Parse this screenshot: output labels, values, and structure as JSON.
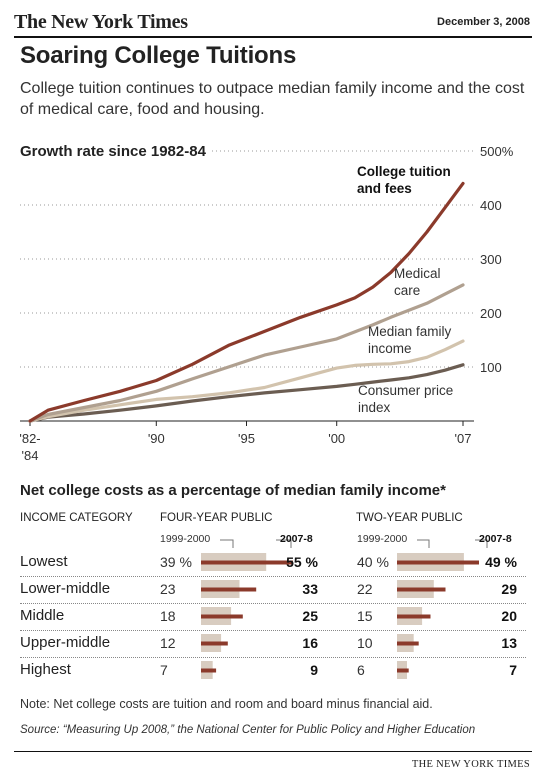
{
  "header": {
    "masthead": "The New York Times",
    "date": "December 3, 2008",
    "title": "Soaring College Tuitions",
    "subtitle": "College tuition continues to outpace median family income and the cost of medical care, food and housing."
  },
  "chart_data": [
    {
      "type": "line",
      "title": "Growth rate since 1982-84",
      "y_axis": {
        "ylim": [
          0,
          500
        ],
        "ticks": [
          "100",
          "200",
          "300",
          "400",
          "500%"
        ],
        "tick_values": [
          100,
          200,
          300,
          400,
          500
        ],
        "grid": true,
        "position": "right"
      },
      "x_axis": {
        "ticks": [
          {
            "label": "'82-",
            "label2": "'84",
            "year": 1983
          },
          {
            "label": "'90",
            "year": 1990
          },
          {
            "label": "'95",
            "year": 1995
          },
          {
            "label": "'00",
            "year": 2000
          },
          {
            "label": "'07",
            "year": 2007
          }
        ]
      },
      "x": [
        1983,
        1984,
        1986,
        1988,
        1990,
        1992,
        1994,
        1996,
        1998,
        2000,
        2001,
        2002,
        2003,
        2004,
        2005,
        2006,
        2007
      ],
      "series": [
        {
          "name": "College tuition and fees",
          "label_lines": [
            "College tuition",
            "and fees"
          ],
          "color": "#8b3a2b",
          "bold": true,
          "values": [
            0,
            20,
            38,
            55,
            75,
            105,
            140,
            166,
            192,
            215,
            228,
            248,
            275,
            310,
            350,
            395,
            440
          ]
        },
        {
          "name": "Medical care",
          "label_lines": [
            "Medical",
            "care"
          ],
          "color": "#b0a090",
          "bold": false,
          "values": [
            0,
            12,
            25,
            38,
            55,
            78,
            100,
            122,
            137,
            152,
            165,
            178,
            192,
            205,
            218,
            235,
            252
          ]
        },
        {
          "name": "Median family income",
          "label_lines": [
            "Median family",
            "income"
          ],
          "color": "#d2c3ad",
          "bold": false,
          "values": [
            0,
            8,
            20,
            30,
            40,
            45,
            52,
            62,
            80,
            98,
            103,
            105,
            106,
            110,
            118,
            132,
            148
          ]
        },
        {
          "name": "Consumer price index",
          "label_lines": [
            "Consumer price",
            "index"
          ],
          "color": "#6b5d52",
          "bold": false,
          "values": [
            0,
            7,
            13,
            20,
            28,
            37,
            45,
            52,
            58,
            64,
            68,
            72,
            76,
            80,
            86,
            94,
            104
          ]
        }
      ]
    },
    {
      "type": "table",
      "title": "Net college costs as a percentage of median family income*",
      "columns": {
        "category": "INCOME CATEGORY",
        "four_year": "FOUR-YEAR PUBLIC",
        "two_year": "TWO-YEAR PUBLIC",
        "year_a": "1999-2000",
        "year_b": "2007-8"
      },
      "scale_max": 55,
      "rows": [
        {
          "label": "Lowest",
          "four_a": "39 %",
          "four_b": "55 %",
          "four_a_val": 39,
          "four_b_val": 55,
          "two_a": "40 %",
          "two_b": "49 %",
          "two_a_val": 40,
          "two_b_val": 49
        },
        {
          "label": "Lower-middle",
          "four_a": "23",
          "four_b": "33",
          "four_a_val": 23,
          "four_b_val": 33,
          "two_a": "22",
          "two_b": "29",
          "two_a_val": 22,
          "two_b_val": 29
        },
        {
          "label": "Middle",
          "four_a": "18",
          "four_b": "25",
          "four_a_val": 18,
          "four_b_val": 25,
          "two_a": "15",
          "two_b": "20",
          "two_a_val": 15,
          "two_b_val": 20
        },
        {
          "label": "Upper-middle",
          "four_a": "12",
          "four_b": "16",
          "four_a_val": 12,
          "four_b_val": 16,
          "two_a": "10",
          "two_b": "13",
          "two_a_val": 10,
          "two_b_val": 13
        },
        {
          "label": "Highest",
          "four_a": "7",
          "four_b": "9",
          "four_a_val": 7,
          "four_b_val": 9,
          "two_a": "6",
          "two_b": "7",
          "two_a_val": 6,
          "two_b_val": 7
        }
      ],
      "colors": {
        "year_a": "#d8ccc0",
        "year_b": "#8b3a2b"
      }
    }
  ],
  "footer": {
    "note": "Note: Net college costs are tuition and room and board minus financial aid.",
    "source": "Source: “Measuring Up 2008,” the National Center for Public Policy and Higher Education",
    "credit": "THE NEW YORK TIMES"
  }
}
